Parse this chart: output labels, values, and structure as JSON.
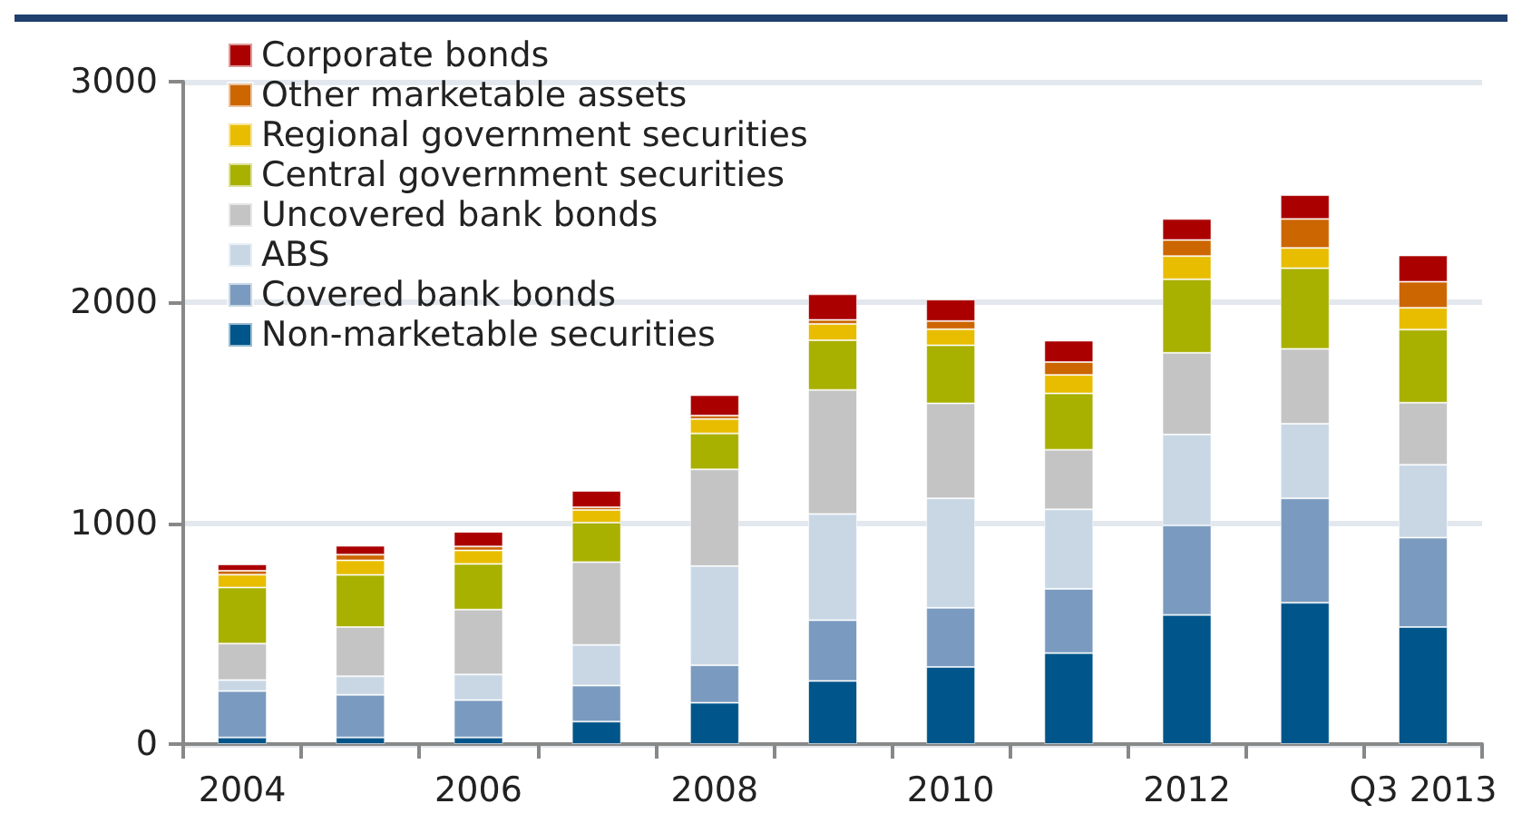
{
  "chart_data": {
    "type": "bar",
    "stacked": true,
    "categories": [
      "2004",
      null,
      "2006",
      null,
      "2008",
      null,
      "2010",
      null,
      "2012",
      null,
      "Q3 2013"
    ],
    "series": [
      {
        "name": "Non-marketable securities",
        "color": "#00558a",
        "values": [
          30,
          30,
          30,
          102,
          187,
          286,
          349,
          412,
          585,
          640,
          530
        ]
      },
      {
        "name": "Covered bank bonds",
        "color": "#7a9bbf",
        "values": [
          210,
          193,
          169,
          163,
          170,
          275,
          268,
          291,
          405,
          473,
          405
        ]
      },
      {
        "name": "ABS",
        "color": "#c9d7e5",
        "values": [
          50,
          84,
          116,
          184,
          449,
          481,
          496,
          360,
          412,
          338,
          330
        ]
      },
      {
        "name": "Uncovered bank bonds",
        "color": "#c4c4c4",
        "values": [
          165,
          223,
          294,
          375,
          438,
          562,
          430,
          270,
          370,
          339,
          281
        ]
      },
      {
        "name": "Central government securities",
        "color": "#a8b000",
        "values": [
          254,
          236,
          207,
          179,
          163,
          225,
          263,
          255,
          333,
          365,
          331
        ]
      },
      {
        "name": "Regional government securities",
        "color": "#e8bd00",
        "values": [
          58,
          66,
          61,
          57,
          65,
          74,
          73,
          84,
          105,
          92,
          99
        ]
      },
      {
        "name": "Other marketable assets",
        "color": "#cc6600",
        "values": [
          18,
          26,
          18,
          13,
          16,
          18,
          37,
          58,
          73,
          131,
          118
        ]
      },
      {
        "name": "Corporate bonds",
        "color": "#aa0000",
        "values": [
          29,
          40,
          66,
          74,
          92,
          116,
          97,
          97,
          95,
          108,
          119
        ]
      }
    ],
    "ylim": [
      0,
      3000
    ],
    "yticks": [
      0,
      1000,
      2000,
      3000
    ],
    "grid": "y",
    "legend": "top left"
  }
}
